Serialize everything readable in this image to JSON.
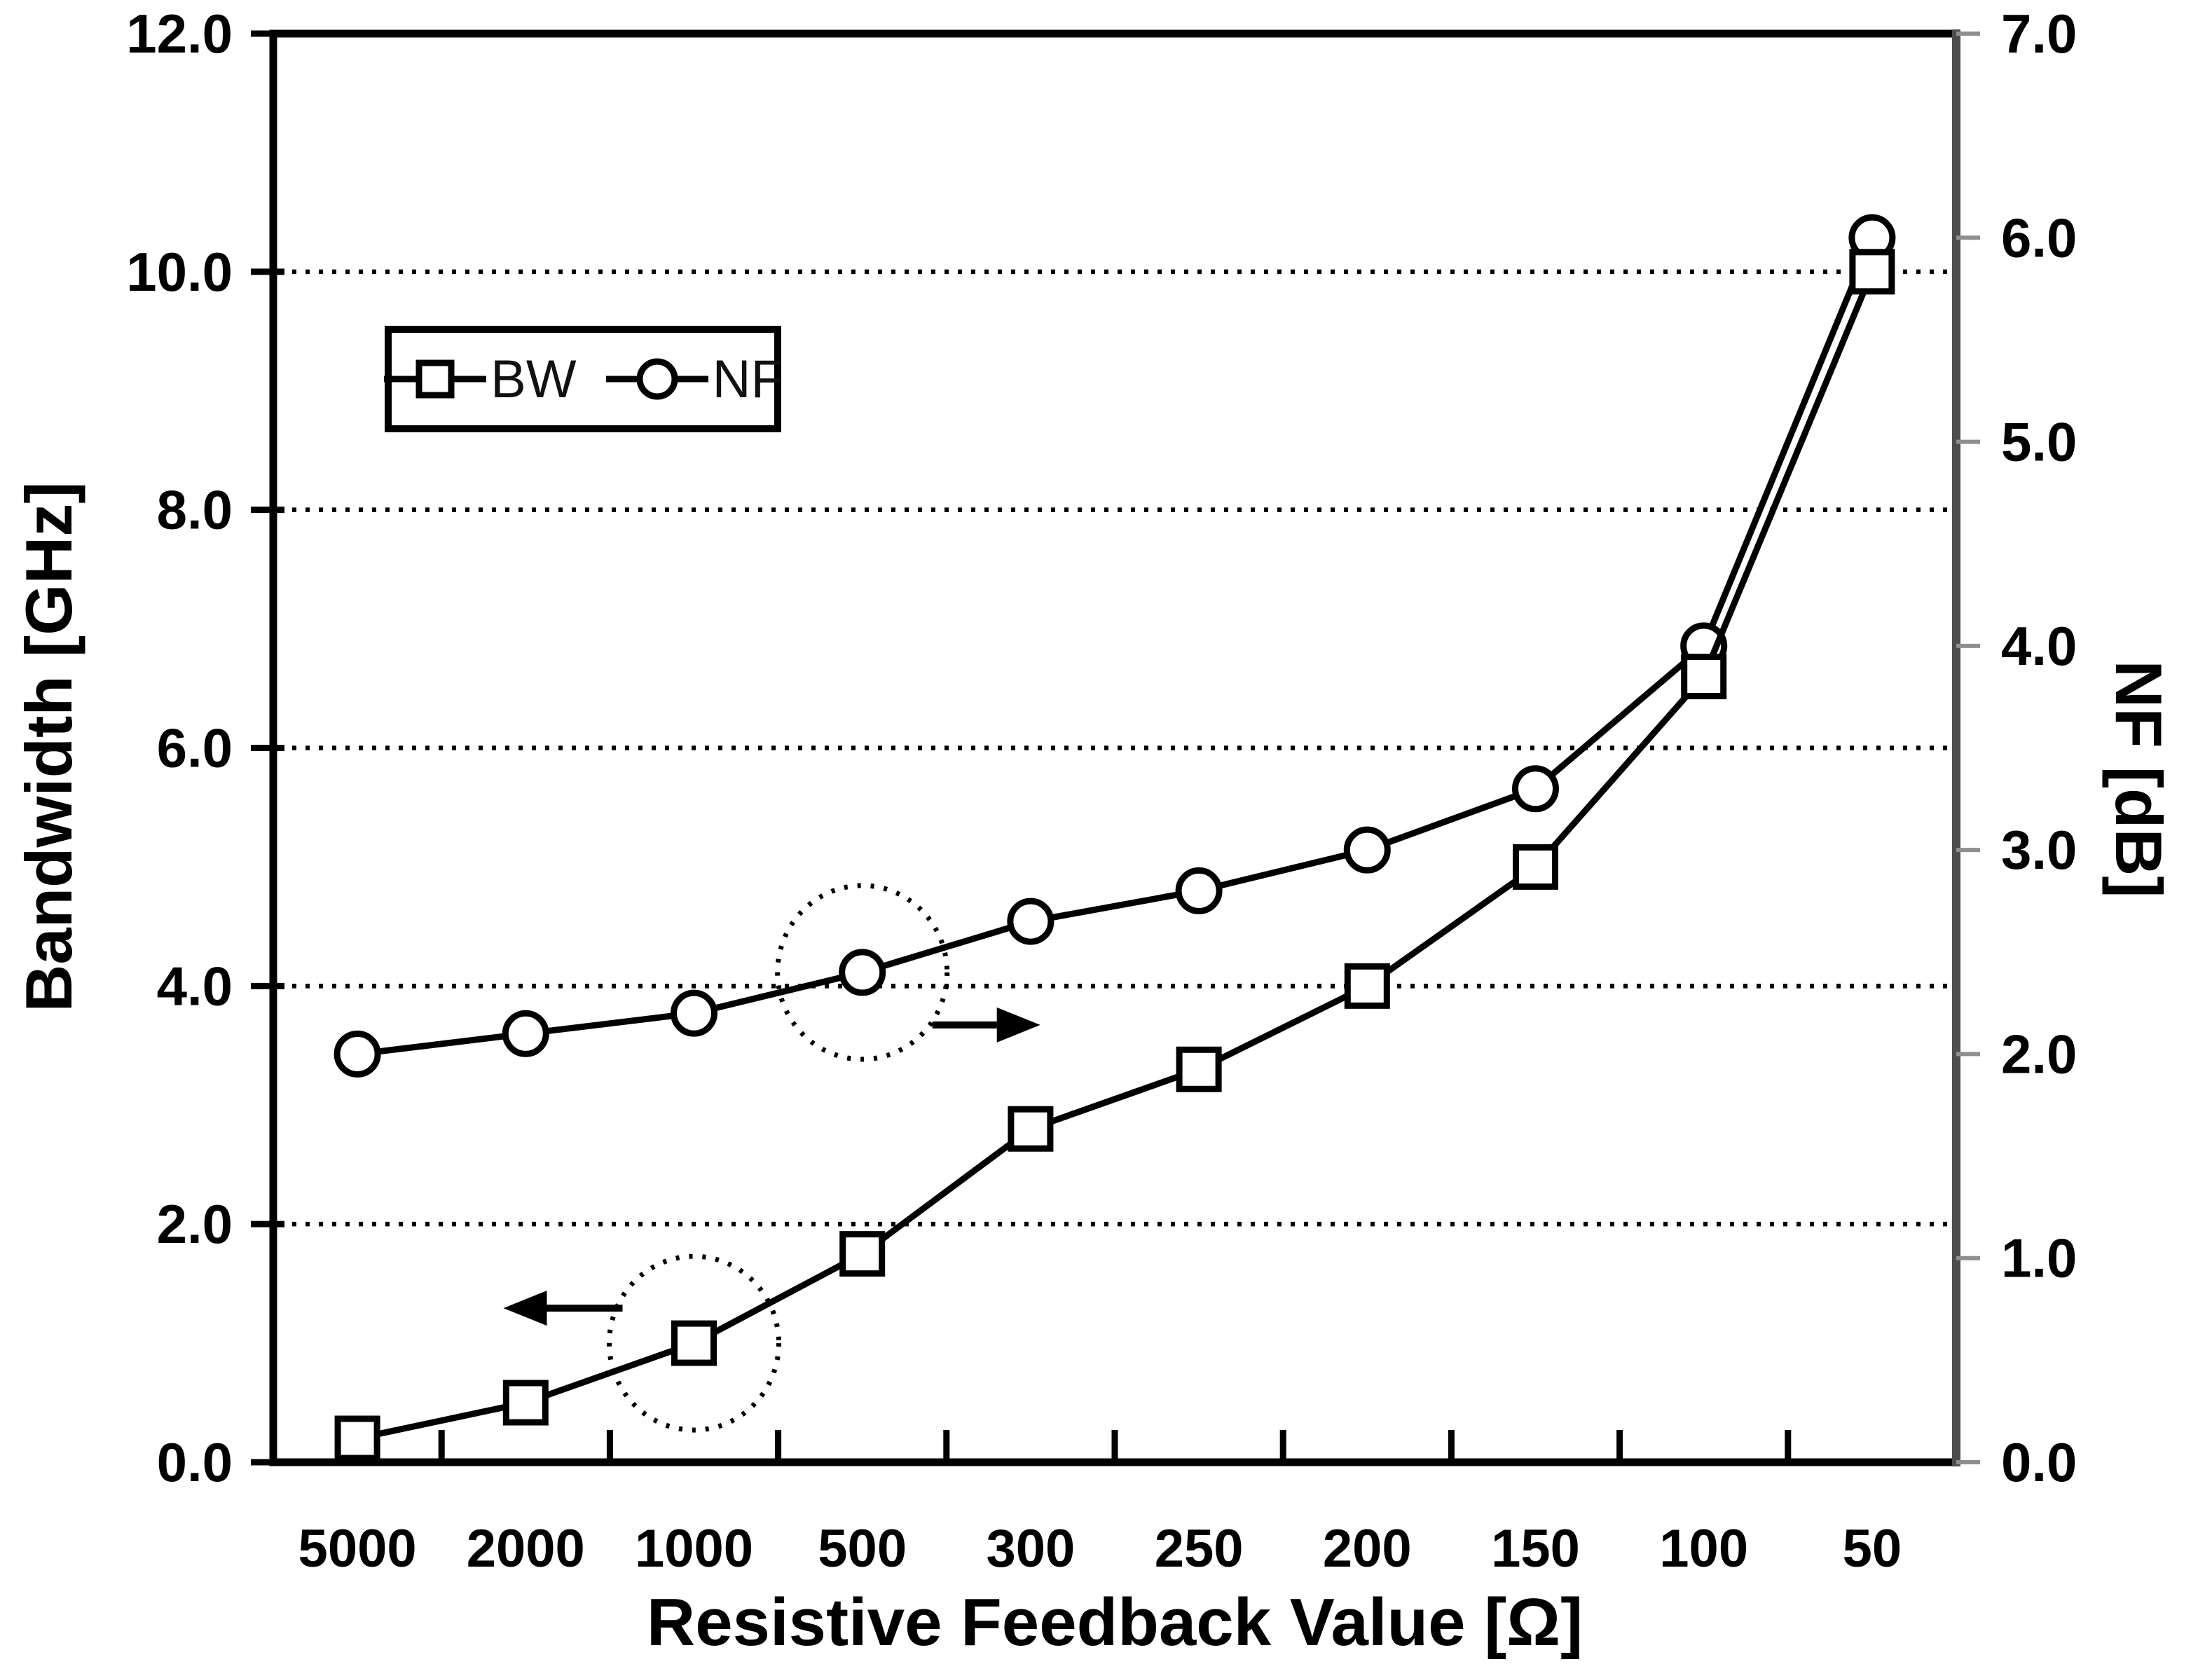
{
  "chart_data": {
    "type": "line",
    "title": "",
    "categories": [
      "5000",
      "2000",
      "1000",
      "500",
      "300",
      "250",
      "200",
      "150",
      "100",
      "50"
    ],
    "series": [
      {
        "name": "BW",
        "axis": "left",
        "marker": "square",
        "values": [
          0.2,
          0.5,
          1.0,
          1.75,
          2.8,
          3.3,
          4.0,
          5.0,
          6.6,
          10.0
        ]
      },
      {
        "name": "NF",
        "axis": "right",
        "marker": "circle",
        "values": [
          2.0,
          2.1,
          2.2,
          2.4,
          2.65,
          2.8,
          3.0,
          3.3,
          4.0,
          6.0
        ]
      }
    ],
    "left_axis": {
      "label": "Bandwidth [GHz]",
      "min": 0,
      "max": 12,
      "ticks": [
        {
          "v": 0,
          "label": "0.0"
        },
        {
          "v": 2,
          "label": "2.0"
        },
        {
          "v": 4,
          "label": "4.0"
        },
        {
          "v": 6,
          "label": "6.0"
        },
        {
          "v": 8,
          "label": "8.0"
        },
        {
          "v": 10,
          "label": "10.0"
        },
        {
          "v": 12,
          "label": "12.0"
        }
      ]
    },
    "right_axis": {
      "label": "NF [dB]",
      "min": 0,
      "max": 7,
      "ticks": [
        {
          "v": 0,
          "label": "0.0"
        },
        {
          "v": 1,
          "label": "1.0"
        },
        {
          "v": 2,
          "label": "2.0"
        },
        {
          "v": 3,
          "label": "3.0"
        },
        {
          "v": 4,
          "label": "4.0"
        },
        {
          "v": 5,
          "label": "5.0"
        },
        {
          "v": 6,
          "label": "6.0"
        },
        {
          "v": 7,
          "label": "7.0"
        }
      ]
    },
    "x_axis": {
      "label": "Resistive Feedback Value [Ω]"
    },
    "gridlines": {
      "style": "dotted",
      "left_values": [
        2,
        4,
        6,
        8,
        10
      ]
    },
    "legend": {
      "position": "inside-top-left",
      "items": [
        {
          "label": "BW",
          "marker": "square"
        },
        {
          "label": "NF",
          "marker": "circle"
        }
      ]
    },
    "annotations": [
      {
        "type": "dotted-ellipse-with-arrow",
        "series": "BW",
        "category": "1000",
        "arrow": "left",
        "meaning": "BW curve reads on left axis"
      },
      {
        "type": "dotted-ellipse-with-arrow",
        "series": "NF",
        "category": "500",
        "arrow": "right",
        "meaning": "NF curve reads on right axis"
      }
    ],
    "colors": {
      "foreground": "#000000",
      "background": "#ffffff",
      "right_axis_line": "#4d4d4d",
      "minor_tick": "#8f8f8f"
    },
    "legend_note": "grid on (horizontal dotted only), markers open/white-filled"
  }
}
